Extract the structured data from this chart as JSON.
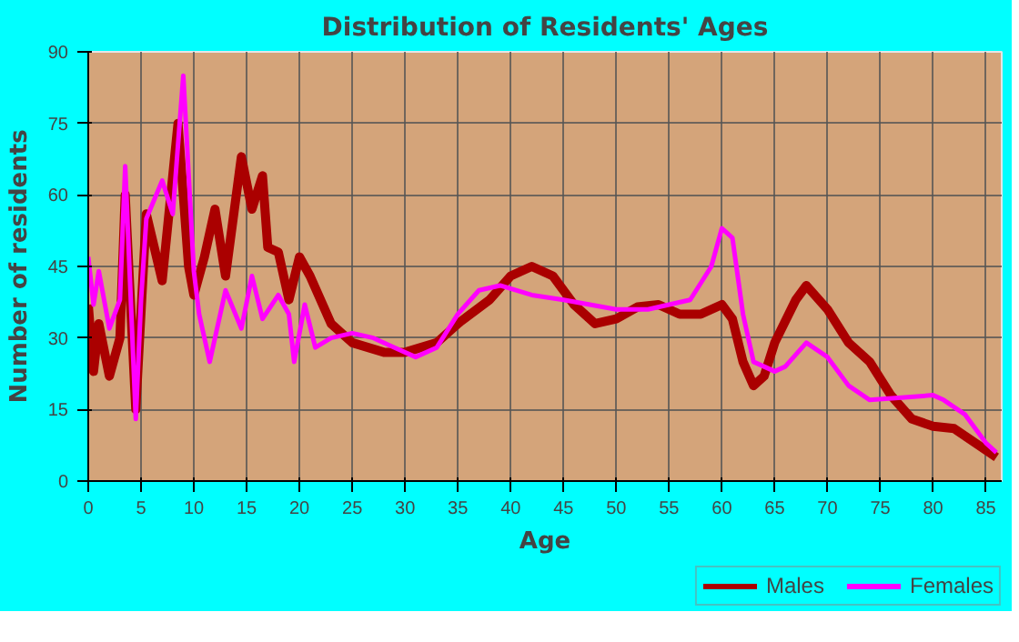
{
  "chart_data": {
    "type": "line",
    "title": "Distribution of Residents' Ages",
    "xlabel": "Age",
    "ylabel": "Number of residents",
    "xlim": [
      0,
      86.5
    ],
    "xticks": [
      0,
      5,
      10,
      15,
      20,
      25,
      30,
      35,
      40,
      45,
      50,
      55,
      60,
      65,
      70,
      75,
      80,
      85
    ],
    "ylim": [
      0,
      90
    ],
    "yticks": [
      0,
      15,
      30,
      45,
      60,
      75,
      90
    ],
    "grid": true,
    "legend": "bottom right",
    "series": [
      {
        "name": "Males",
        "color": "#aa0000",
        "x": [
          0,
          0.5,
          1,
          2,
          3,
          3.5,
          4.5,
          5.5,
          7,
          8.5,
          9.5,
          10,
          11,
          12,
          13,
          14.5,
          15.5,
          16.5,
          17,
          18,
          19,
          20,
          21,
          23,
          25,
          28,
          30,
          33,
          35,
          38,
          40,
          42,
          44,
          46,
          48,
          50,
          52,
          54,
          56,
          58,
          60,
          61,
          62,
          63,
          64,
          65,
          67,
          68,
          70,
          72,
          74,
          76,
          78,
          80,
          82,
          84,
          86
        ],
        "values": [
          37,
          23,
          33,
          22,
          30,
          60,
          15,
          56,
          42,
          75,
          45,
          39,
          47,
          57,
          43,
          68,
          57,
          64,
          49,
          48,
          38,
          47,
          43,
          33,
          29,
          27,
          27,
          29,
          33,
          38,
          43,
          45,
          43,
          37,
          33,
          34,
          36.5,
          37,
          35,
          35,
          37,
          34,
          25,
          20,
          22,
          29,
          38,
          41,
          36,
          29,
          25,
          18,
          13,
          11.5,
          11,
          8,
          5
        ]
      },
      {
        "name": "Females",
        "color": "#ff00ff",
        "x": [
          0,
          0.5,
          1,
          2,
          3,
          3.5,
          4.5,
          5,
          5.5,
          7,
          8,
          9,
          10,
          10.5,
          11.5,
          12.5,
          13,
          14.5,
          15.5,
          16.5,
          18,
          19,
          19.5,
          20.5,
          21.5,
          23,
          25,
          27,
          29,
          31,
          33,
          35,
          37,
          39,
          42,
          45,
          50,
          53,
          57,
          59,
          60,
          61,
          62,
          63,
          65,
          66,
          68,
          70,
          72,
          74,
          77,
          80,
          81,
          83,
          85,
          86
        ],
        "values": [
          47,
          37,
          44,
          32,
          38,
          66,
          13,
          38,
          55,
          63,
          56,
          85,
          44,
          35,
          25,
          35,
          40,
          32,
          43,
          34,
          39,
          35,
          25,
          37,
          28,
          30,
          31,
          30,
          28,
          26,
          28,
          35,
          40,
          41,
          39,
          38,
          36,
          36,
          38,
          45,
          53,
          51,
          35,
          25,
          23,
          24,
          29,
          26,
          20,
          17,
          17.5,
          18,
          17,
          14,
          8,
          6
        ]
      }
    ]
  }
}
